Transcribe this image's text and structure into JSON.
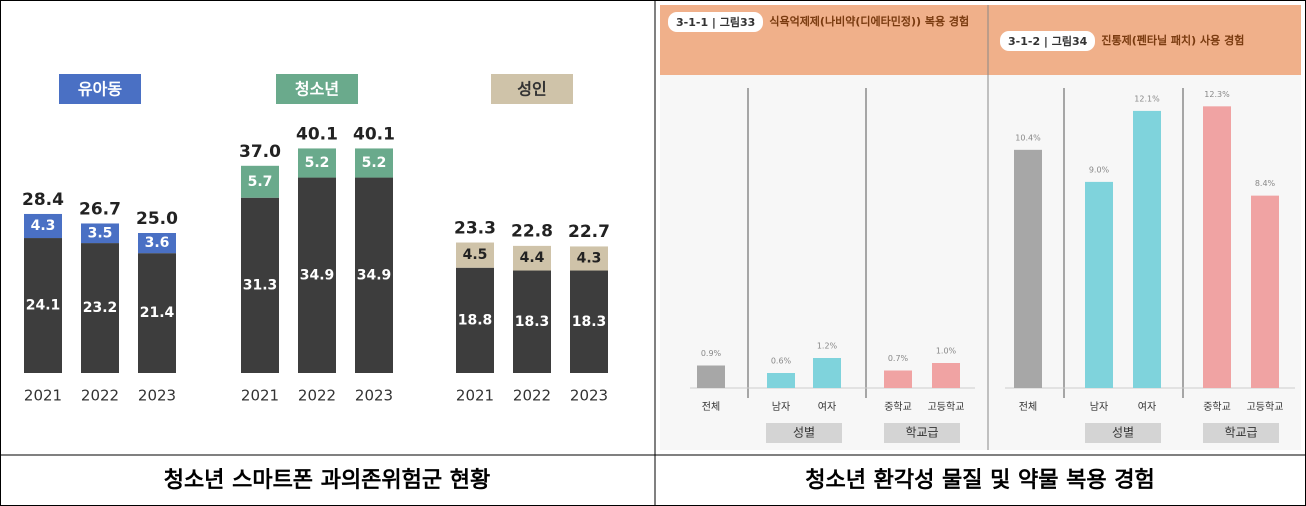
{
  "chart_data": [
    {
      "type": "stacked-bar",
      "categories": [
        "2021",
        "2022",
        "2023",
        "2021",
        "2022",
        "2023",
        "2021",
        "2022",
        "2023"
      ],
      "groups": [
        {
          "name": "유아동",
          "color": "#4a70c4",
          "text_color": "#ffffff"
        },
        {
          "name": "청소년",
          "color": "#6aaa8c",
          "text_color": "#ffffff"
        },
        {
          "name": "성인",
          "color": "#cfc3a9",
          "text_color": "#222222"
        }
      ],
      "series": [
        {
          "color": "#3d3d3d",
          "values": [
            24.1,
            23.2,
            21.4,
            31.3,
            34.9,
            34.9,
            18.8,
            18.3,
            18.3
          ]
        },
        {
          "values": [
            4.3,
            3.5,
            3.6,
            5.7,
            5.2,
            5.2,
            4.5,
            4.4,
            4.3
          ]
        }
      ],
      "totals": [
        28.4,
        26.7,
        25.0,
        37.0,
        40.1,
        40.1,
        23.3,
        22.8,
        22.7
      ],
      "total_labels": [
        "28.4",
        "26.7",
        "25.0",
        "37.0",
        "40.1",
        "40.1",
        "23.3",
        "22.8",
        "22.7"
      ]
    },
    {
      "type": "bar",
      "tag": "3-1-1 | 그림33",
      "title": "식욕억제제(나비약(디에타민정)) 복용 경험",
      "categories": [
        "전체",
        "남자",
        "여자",
        "중학교",
        "고등학교"
      ],
      "values": [
        0.9,
        0.6,
        1.2,
        0.7,
        1.0
      ],
      "value_labels": [
        "0.9%",
        "0.6%",
        "1.2%",
        "0.7%",
        "1.0%"
      ],
      "colors": [
        "#a7a7a7",
        "#7fd3dc",
        "#7fd3dc",
        "#f0a3a3",
        "#f0a3a3"
      ],
      "groups": [
        "성별",
        "학교급"
      ]
    },
    {
      "type": "bar",
      "tag": "3-1-2 | 그림34",
      "title": "진통제(펜타닐 패치) 사용 경험",
      "categories": [
        "전체",
        "남자",
        "여자",
        "중학교",
        "고등학교"
      ],
      "values": [
        10.4,
        9.0,
        12.1,
        12.3,
        8.4
      ],
      "value_labels": [
        "10.4%",
        "9.0%",
        "12.1%",
        "12.3%",
        "8.4%"
      ],
      "colors": [
        "#a7a7a7",
        "#7fd3dc",
        "#7fd3dc",
        "#f0a3a3",
        "#f0a3a3"
      ],
      "groups": [
        "성별",
        "학교급"
      ]
    }
  ],
  "captions": [
    "청소년 스마트폰 과의존위험군 현황",
    "청소년 환각성 물질 및 약물 복용 경험"
  ]
}
